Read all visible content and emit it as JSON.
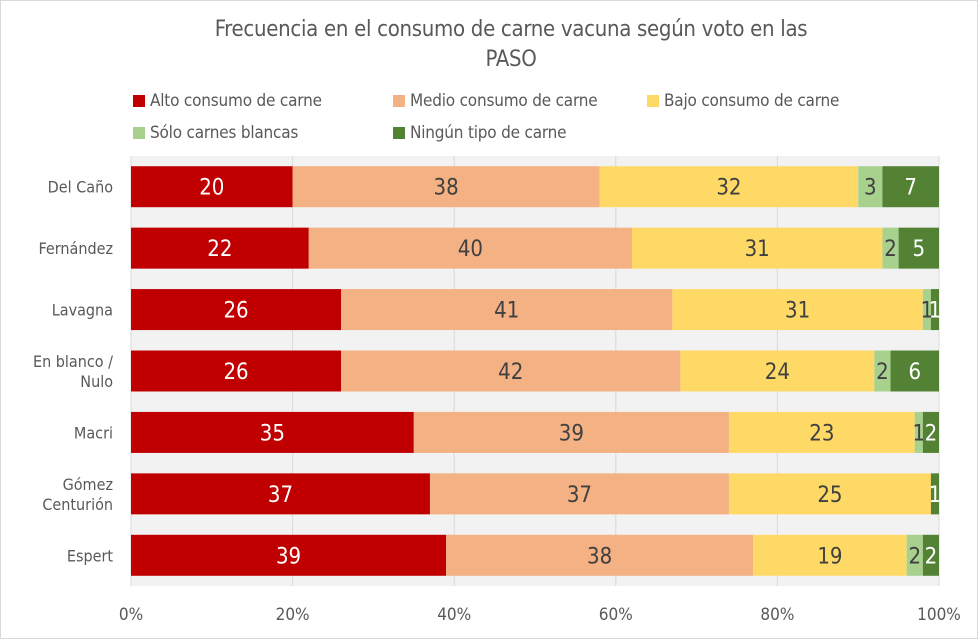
{
  "chart_data": {
    "type": "bar",
    "orientation": "horizontal",
    "stacked": true,
    "percent_stacked": true,
    "title": "Frecuencia en el consumo de carne vacuna según voto en las PASO",
    "title_lines": [
      "Frecuencia en el consumo de carne vacuna según voto en las",
      "PASO"
    ],
    "xlabel": "",
    "ylabel": "",
    "xlim": [
      0,
      100
    ],
    "x_ticks": [
      "0%",
      "20%",
      "40%",
      "60%",
      "80%",
      "100%"
    ],
    "grid": true,
    "legend_position": "top",
    "categories": [
      [
        "Del Caño"
      ],
      [
        "Fernández"
      ],
      [
        "Lavagna"
      ],
      [
        "En blanco /",
        "Nulo"
      ],
      [
        "Macri"
      ],
      [
        "Gómez",
        "Centurión"
      ],
      [
        "Espert"
      ]
    ],
    "series": [
      {
        "name": "Alto consumo de carne",
        "color": "#c00000",
        "label_color": "#ffffff",
        "values": [
          20,
          22,
          26,
          26,
          35,
          37,
          39
        ]
      },
      {
        "name": "Medio consumo de carne",
        "color": "#f4b183",
        "label_color": "#404040",
        "values": [
          38,
          40,
          41,
          42,
          39,
          37,
          38
        ]
      },
      {
        "name": "Bajo consumo de carne",
        "color": "#ffd966",
        "label_color": "#404040",
        "values": [
          32,
          31,
          31,
          24,
          23,
          25,
          19
        ]
      },
      {
        "name": "Sólo carnes blancas",
        "color": "#a9d18e",
        "label_color": "#404040",
        "values": [
          3,
          2,
          1,
          2,
          1,
          0,
          2
        ]
      },
      {
        "name": "Ningún tipo de carne",
        "color": "#548235",
        "label_color": "#ffffff",
        "values": [
          7,
          5,
          1,
          6,
          2,
          1,
          2
        ]
      }
    ]
  },
  "colors": {
    "plot_background": "#f2f2f2",
    "gridline": "#d9d9d9",
    "text": "#595959"
  }
}
